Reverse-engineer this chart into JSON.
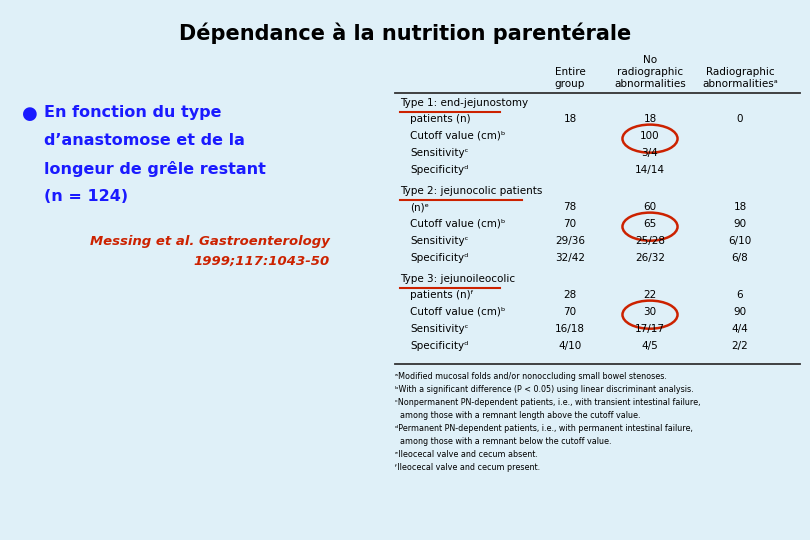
{
  "title": "Dépendance à la nutrition parentérale",
  "bg_color": "#dff0f8",
  "bullet_color": "#1a1aff",
  "cite_color": "#cc2200",
  "circle_color": "#cc2200",
  "underline_color": "#cc2200",
  "text_color": "#000000",
  "bullet_lines": [
    "En fonction du type",
    "d’anastomose et de la",
    "longeur de grêle restant",
    "(n = 124)"
  ],
  "cite_line1": "Messing et al. Gastroenterology",
  "cite_line2": "1999;117:1043-50",
  "col_headers": {
    "no_label": "No",
    "col1": "Entire\ngroup",
    "col2": "radiographic\nabnormalities",
    "col3": "Radiographic\nabnormalitiesᵃ"
  },
  "sections": [
    {
      "label": "Type 1: end-jejunostomy",
      "rows": [
        [
          "patients (n)",
          "18",
          "18",
          "0"
        ],
        [
          "Cutoff value (cm)ᵇ",
          "",
          "100",
          ""
        ],
        [
          "Sensitivityᶜ",
          "",
          "3/4",
          ""
        ],
        [
          "Specificityᵈ",
          "",
          "14/14",
          ""
        ]
      ]
    },
    {
      "label": "Type 2: jejunocolic patients",
      "rows": [
        [
          "(n)ᵉ",
          "78",
          "60",
          "18"
        ],
        [
          "Cutoff value (cm)ᵇ",
          "70",
          "65",
          "90"
        ],
        [
          "Sensitivityᶜ",
          "29/36",
          "25/28",
          "6/10"
        ],
        [
          "Specificityᵈ",
          "32/42",
          "26/32",
          "6/8"
        ]
      ]
    },
    {
      "label": "Type 3: jejunoileocolic",
      "rows": [
        [
          "patients (n)ᶠ",
          "28",
          "22",
          "6"
        ],
        [
          "Cutoff value (cm)ᵇ",
          "70",
          "30",
          "90"
        ],
        [
          "Sensitivityᶜ",
          "16/18",
          "17/17",
          "4/4"
        ],
        [
          "Specificityᵈ",
          "4/10",
          "4/5",
          "2/2"
        ]
      ]
    }
  ],
  "circled_row": 1,
  "footnotes": [
    "ᵃModified mucosal folds and/or nonoccluding small bowel stenoses.",
    "ᵇWith a significant difference (P < 0.05) using linear discriminant analysis.",
    "ᶜNonpermanent PN-dependent patients, i.e., with transient intestinal failure,",
    "  among those with a remnant length above the cutoff value.",
    "ᵈPermanent PN-dependent patients, i.e., with permanent intestinal failure,",
    "  among those with a remnant below the cutoff value.",
    "ᵉIleocecal valve and cecum absent.",
    "ᶠIleocecal valve and cecum present."
  ]
}
